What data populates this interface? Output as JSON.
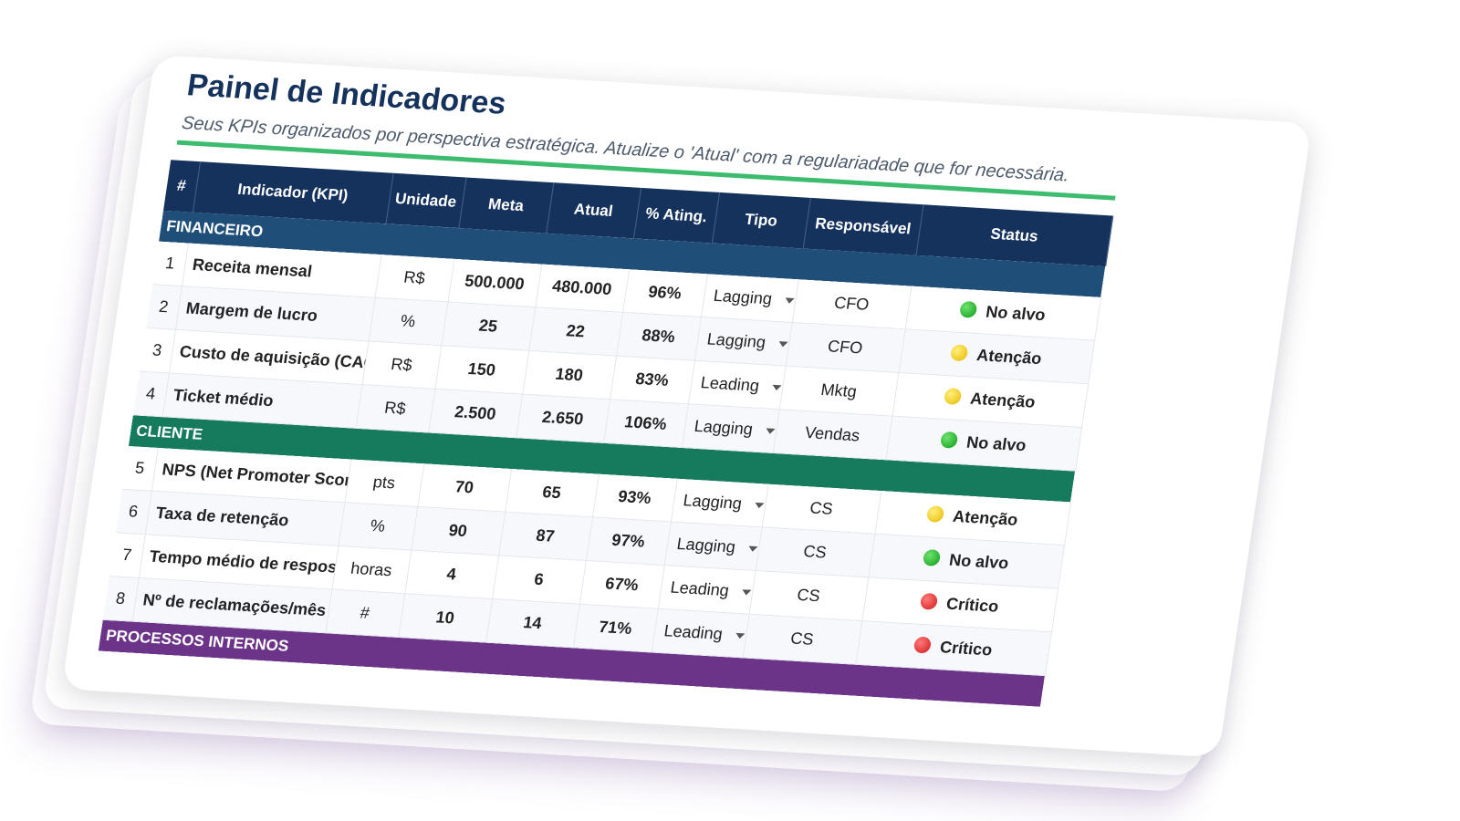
{
  "title": "Painel de Indicadores",
  "subtitle": "Seus KPIs organizados por perspectiva estratégica. Atualize o 'Atual' com a regulariadade que for necessária.",
  "colors": {
    "header": "#15325c",
    "financeiro": "#1f4e79",
    "cliente": "#167a5d",
    "processos": "#6b3488",
    "accent_line": "#3dbb6e"
  },
  "columns": [
    "#",
    "Indicador (KPI)",
    "Unidade",
    "Meta",
    "Atual",
    "% Ating.",
    "Tipo",
    "Responsável",
    "Status"
  ],
  "sections": {
    "financeiro": "FINANCEIRO",
    "cliente": "CLIENTE",
    "processos": "PROCESSOS INTERNOS"
  },
  "rows": [
    {
      "n": "1",
      "name": "Receita mensal",
      "unit": "R$",
      "meta": "500.000",
      "atual": "480.000",
      "ating": "96%",
      "tipo": "Lagging",
      "resp": "CFO",
      "status": "No alvo",
      "status_color": "green"
    },
    {
      "n": "2",
      "name": "Margem de lucro",
      "unit": "%",
      "meta": "25",
      "atual": "22",
      "ating": "88%",
      "tipo": "Lagging",
      "resp": "CFO",
      "status": "Atenção",
      "status_color": "yellow"
    },
    {
      "n": "3",
      "name": "Custo de aquisição (CAC)",
      "unit": "R$",
      "meta": "150",
      "atual": "180",
      "ating": "83%",
      "tipo": "Leading",
      "resp": "Mktg",
      "status": "Atenção",
      "status_color": "yellow"
    },
    {
      "n": "4",
      "name": "Ticket médio",
      "unit": "R$",
      "meta": "2.500",
      "atual": "2.650",
      "ating": "106%",
      "tipo": "Lagging",
      "resp": "Vendas",
      "status": "No alvo",
      "status_color": "green"
    },
    {
      "n": "5",
      "name": "NPS (Net Promoter Score)",
      "unit": "pts",
      "meta": "70",
      "atual": "65",
      "ating": "93%",
      "tipo": "Lagging",
      "resp": "CS",
      "status": "Atenção",
      "status_color": "yellow"
    },
    {
      "n": "6",
      "name": "Taxa de retenção",
      "unit": "%",
      "meta": "90",
      "atual": "87",
      "ating": "97%",
      "tipo": "Lagging",
      "resp": "CS",
      "status": "No alvo",
      "status_color": "green"
    },
    {
      "n": "7",
      "name": "Tempo médio de resposta",
      "unit": "horas",
      "meta": "4",
      "atual": "6",
      "ating": "67%",
      "tipo": "Leading",
      "resp": "CS",
      "status": "Crítico",
      "status_color": "red"
    },
    {
      "n": "8",
      "name": "Nº de reclamações/mês",
      "unit": "#",
      "meta": "10",
      "atual": "14",
      "ating": "71%",
      "tipo": "Leading",
      "resp": "CS",
      "status": "Crítico",
      "status_color": "red"
    }
  ]
}
